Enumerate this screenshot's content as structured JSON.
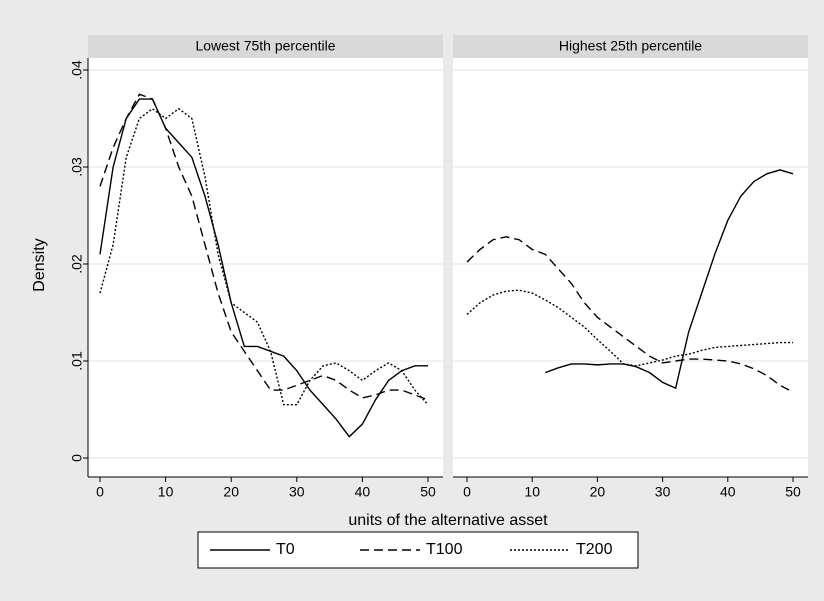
{
  "chart_data": {
    "type": "line",
    "ylabel": "Density",
    "xlabel": "units of the alternative asset",
    "ylim": [
      0,
      0.04
    ],
    "yticks": [
      0,
      {
        "value": 0.01,
        "label": ".01"
      },
      {
        "value": 0.02,
        "label": ".02"
      },
      {
        "value": 0.03,
        "label": ".03"
      },
      {
        "value": 0.04,
        "label": ".04"
      }
    ],
    "xlim": [
      0,
      50
    ],
    "xticks": [
      0,
      10,
      20,
      30,
      40,
      50
    ],
    "grid": true,
    "legend_position": "bottom",
    "panels": [
      {
        "title": "Lowest 75th percentile",
        "x": [
          0,
          2,
          4,
          6,
          8,
          10,
          12,
          14,
          16,
          18,
          20,
          22,
          24,
          26,
          28,
          30,
          32,
          34,
          36,
          38,
          40,
          42,
          44,
          46,
          48,
          50
        ],
        "series": [
          {
            "name": "T0",
            "dash": "solid",
            "color": "#000000",
            "values": [
              0.021,
              0.03,
              0.035,
              0.037,
              0.037,
              0.034,
              0.0325,
              0.031,
              0.027,
              0.022,
              0.016,
              0.0115,
              0.0115,
              0.011,
              0.0105,
              0.009,
              0.007,
              0.0055,
              0.004,
              0.0022,
              0.0035,
              0.006,
              0.008,
              0.009,
              0.0095,
              0.0095
            ]
          },
          {
            "name": "T100",
            "dash": "dashed",
            "color": "#000000",
            "values": [
              0.028,
              0.032,
              0.035,
              0.0375,
              0.037,
              0.034,
              0.03,
              0.027,
              0.022,
              0.017,
              0.013,
              0.011,
              0.009,
              0.007,
              0.007,
              0.0075,
              0.008,
              0.0085,
              0.008,
              0.007,
              0.0062,
              0.0065,
              0.007,
              0.007,
              0.0065,
              0.006
            ]
          },
          {
            "name": "T200",
            "dash": "dotted",
            "color": "#000000",
            "values": [
              0.017,
              0.022,
              0.031,
              0.035,
              0.036,
              0.035,
              0.036,
              0.035,
              0.029,
              0.021,
              0.016,
              0.015,
              0.014,
              0.011,
              0.0055,
              0.0055,
              0.008,
              0.0095,
              0.0098,
              0.009,
              0.008,
              0.009,
              0.0098,
              0.009,
              0.007,
              0.0055
            ]
          }
        ]
      },
      {
        "title": "Highest 25th percentile",
        "x": [
          0,
          2,
          4,
          6,
          8,
          10,
          12,
          14,
          16,
          18,
          20,
          22,
          24,
          26,
          28,
          30,
          32,
          34,
          36,
          38,
          40,
          42,
          44,
          46,
          48,
          50
        ],
        "series": [
          {
            "name": "T0",
            "dash": "solid",
            "color": "#000000",
            "values": [
              null,
              null,
              null,
              null,
              null,
              null,
              0.0088,
              0.0093,
              0.0097,
              0.0097,
              0.0096,
              0.0097,
              0.0097,
              0.0094,
              0.0088,
              0.0078,
              0.0072,
              0.013,
              0.017,
              0.021,
              0.0245,
              0.027,
              0.0285,
              0.0293,
              0.0297,
              0.0293
            ]
          },
          {
            "name": "T100",
            "dash": "dashed",
            "color": "#000000",
            "values": [
              0.0202,
              0.0215,
              0.0225,
              0.0228,
              0.0225,
              0.0215,
              0.021,
              0.0195,
              0.018,
              0.016,
              0.0145,
              0.0135,
              0.0125,
              0.0115,
              0.0105,
              0.0098,
              0.01,
              0.0102,
              0.0102,
              0.0101,
              0.01,
              0.0097,
              0.0092,
              0.0085,
              0.0075,
              0.0068
            ]
          },
          {
            "name": "T200",
            "dash": "dotted",
            "color": "#000000",
            "values": [
              0.0148,
              0.016,
              0.0168,
              0.0172,
              0.0173,
              0.017,
              0.0163,
              0.0155,
              0.0145,
              0.0135,
              0.0122,
              0.011,
              0.0097,
              0.0095,
              0.0098,
              0.0101,
              0.0105,
              0.0107,
              0.0111,
              0.0114,
              0.0115,
              0.0116,
              0.0117,
              0.0118,
              0.0119,
              0.0119
            ]
          }
        ]
      }
    ]
  }
}
